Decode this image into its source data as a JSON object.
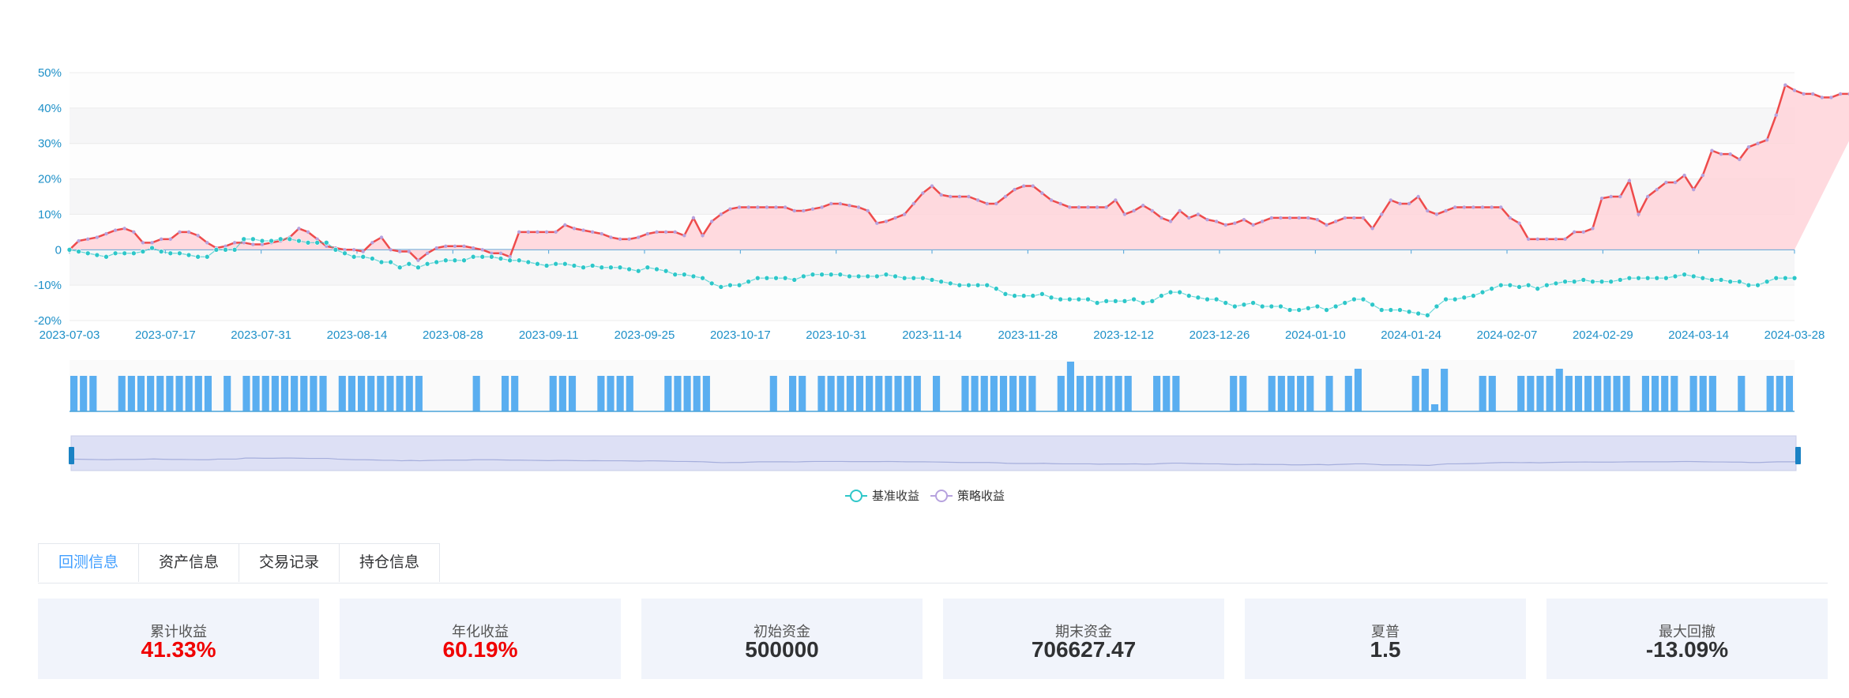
{
  "chart_data": {
    "type": "line",
    "y_ticks": [
      "50%",
      "40%",
      "30%",
      "20%",
      "10%",
      "0",
      "-10%",
      "-20%"
    ],
    "y_tick_values": [
      50,
      40,
      30,
      20,
      10,
      0,
      -10,
      -20
    ],
    "ylim": [
      -20,
      50
    ],
    "x_ticks": [
      "2023-07-03",
      "2023-07-17",
      "2023-07-31",
      "2023-08-14",
      "2023-08-28",
      "2023-09-11",
      "2023-09-25",
      "2023-10-17",
      "2023-10-31",
      "2023-11-14",
      "2023-11-28",
      "2023-12-12",
      "2023-12-26",
      "2024-01-10",
      "2024-01-24",
      "2024-02-07",
      "2024-02-29",
      "2024-03-14",
      "2024-03-28"
    ],
    "grid": true,
    "legend_position": "bottom-center",
    "series": [
      {
        "name": "基准收益",
        "color": "#2ec7c9",
        "values": [
          0.0,
          -0.5,
          -1.0,
          -1.5,
          -2.0,
          -1.0,
          -1.0,
          -1.0,
          -0.5,
          0.5,
          -0.5,
          -1.0,
          -1.0,
          -1.5,
          -2.0,
          -2.0,
          0.0,
          0.0,
          0.0,
          3.0,
          3.0,
          2.5,
          2.5,
          3.0,
          3.0,
          2.5,
          2.0,
          2.0,
          2.0,
          0.0,
          -1.0,
          -2.0,
          -2.0,
          -2.5,
          -3.5,
          -3.5,
          -5.0,
          -4.0,
          -5.0,
          -4.0,
          -3.5,
          -3.0,
          -3.0,
          -3.0,
          -2.0,
          -2.0,
          -2.0,
          -2.5,
          -3.0,
          -3.0,
          -3.5,
          -4.0,
          -4.5,
          -4.0,
          -4.0,
          -4.5,
          -5.0,
          -4.5,
          -5.0,
          -5.0,
          -5.0,
          -5.5,
          -6.0,
          -5.0,
          -5.5,
          -6.0,
          -7.0,
          -7.0,
          -7.5,
          -8.0,
          -9.5,
          -10.5,
          -10.0,
          -10.0,
          -9.0,
          -8.0,
          -8.0,
          -8.0,
          -8.0,
          -8.5,
          -7.5,
          -7.0,
          -7.0,
          -7.0,
          -7.0,
          -7.5,
          -7.5,
          -7.5,
          -7.5,
          -7.0,
          -7.5,
          -8.0,
          -8.0,
          -8.0,
          -8.5,
          -9.0,
          -9.5,
          -10.0,
          -10.0,
          -10.0,
          -10.0,
          -11.0,
          -12.5,
          -13.0,
          -13.0,
          -13.0,
          -12.5,
          -13.5,
          -14.0,
          -14.0,
          -14.0,
          -14.0,
          -15.0,
          -14.5,
          -14.5,
          -14.5,
          -14.0,
          -15.0,
          -14.5,
          -13.0,
          -12.0,
          -12.0,
          -13.0,
          -13.5,
          -14.0,
          -14.0,
          -15.0,
          -16.0,
          -15.5,
          -15.0,
          -16.0,
          -16.0,
          -16.0,
          -17.0,
          -17.0,
          -16.5,
          -16.0,
          -17.0,
          -16.0,
          -15.0,
          -14.0,
          -14.0,
          -15.5,
          -17.0,
          -17.0,
          -17.0,
          -17.5,
          -18.0,
          -18.5,
          -16.0,
          -14.0,
          -14.0,
          -13.5,
          -13.0,
          -12.0,
          -11.0,
          -10.0,
          -10.0,
          -10.5,
          -10.0,
          -11.0,
          -10.0,
          -9.5,
          -9.0,
          -9.0,
          -8.5,
          -9.0,
          -9.0,
          -9.0,
          -8.5,
          -8.0,
          -8.0,
          -8.0,
          -8.0,
          -8.0,
          -7.5,
          -7.0,
          -7.5,
          -8.0,
          -8.5,
          -8.5,
          -9.0,
          -9.0,
          -10.0,
          -10.0,
          -9.0,
          -8.0,
          -8.0,
          -8.0
        ]
      },
      {
        "name": "策略收益",
        "color": "#b6a2de",
        "line_color": "#ee4b4b",
        "area_color": "#ffd3d9",
        "values": [
          0.0,
          2.5,
          3.0,
          3.5,
          4.5,
          5.5,
          6.0,
          5.0,
          2.0,
          2.0,
          3.0,
          3.0,
          5.0,
          5.0,
          4.0,
          2.0,
          0.5,
          1.0,
          2.0,
          2.0,
          1.5,
          1.5,
          2.0,
          2.5,
          3.5,
          6.0,
          5.0,
          3.0,
          1.0,
          0.5,
          0.0,
          0.0,
          -0.5,
          2.0,
          3.5,
          0.0,
          -0.5,
          -0.5,
          -3.0,
          -1.0,
          0.5,
          1.0,
          1.0,
          1.0,
          0.5,
          0.0,
          -1.0,
          -1.0,
          -2.0,
          5.0,
          5.0,
          5.0,
          5.0,
          5.0,
          7.0,
          6.0,
          5.5,
          5.0,
          4.5,
          3.5,
          3.0,
          3.0,
          3.5,
          4.5,
          5.0,
          5.0,
          5.0,
          4.0,
          9.0,
          4.0,
          8.0,
          10.0,
          11.5,
          12.0,
          12.0,
          12.0,
          12.0,
          12.0,
          12.0,
          11.0,
          11.0,
          11.5,
          12.0,
          13.0,
          13.0,
          12.5,
          12.0,
          11.0,
          7.5,
          8.0,
          9.0,
          10.0,
          13.0,
          16.0,
          18.0,
          15.5,
          15.0,
          15.0,
          15.0,
          14.0,
          13.0,
          13.0,
          15.0,
          17.0,
          18.0,
          18.0,
          16.0,
          14.0,
          13.0,
          12.0,
          12.0,
          12.0,
          12.0,
          12.0,
          14.0,
          10.0,
          11.0,
          12.5,
          11.0,
          9.0,
          8.0,
          11.0,
          9.0,
          10.0,
          8.5,
          8.0,
          7.0,
          7.5,
          8.5,
          7.0,
          8.0,
          9.0,
          9.0,
          9.0,
          9.0,
          9.0,
          8.5,
          7.0,
          8.0,
          9.0,
          9.0,
          9.0,
          6.0,
          10.0,
          14.0,
          13.0,
          13.0,
          15.0,
          11.0,
          10.0,
          11.0,
          12.0,
          12.0,
          12.0,
          12.0,
          12.0,
          12.0,
          9.0,
          7.5,
          3.0,
          3.0,
          3.0,
          3.0,
          3.0,
          5.0,
          5.0,
          6.0,
          14.5,
          15.0,
          15.0,
          19.5,
          10.0,
          15.0,
          17.0,
          19.0,
          19.0,
          21.0,
          17.0,
          21.0,
          28.0,
          27.0,
          27.0,
          25.5,
          29.0,
          30.0,
          31.0,
          38.0,
          46.5,
          45.0,
          44.0,
          44.0,
          43.0,
          43.0,
          44.0,
          44.0,
          44.0,
          41.33
        ]
      }
    ],
    "volume_bars": [
      5,
      5,
      5,
      0,
      0,
      5,
      5,
      5,
      5,
      5,
      5,
      5,
      5,
      5,
      5,
      0,
      5,
      0,
      5,
      5,
      5,
      5,
      5,
      5,
      5,
      5,
      5,
      0,
      5,
      5,
      5,
      5,
      5,
      5,
      5,
      5,
      5,
      0,
      0,
      0,
      0,
      0,
      5,
      0,
      0,
      5,
      5,
      0,
      0,
      0,
      5,
      5,
      5,
      0,
      0,
      5,
      5,
      5,
      5,
      0,
      0,
      0,
      5,
      5,
      5,
      5,
      5,
      0,
      0,
      0,
      0,
      0,
      0,
      5,
      0,
      5,
      5,
      0,
      5,
      5,
      5,
      5,
      5,
      5,
      5,
      5,
      5,
      5,
      5,
      0,
      5,
      0,
      0,
      5,
      5,
      5,
      5,
      5,
      5,
      5,
      5,
      0,
      0,
      5,
      7,
      5,
      5,
      5,
      5,
      5,
      5,
      0,
      0,
      5,
      5,
      5,
      0,
      0,
      0,
      0,
      0,
      5,
      5,
      0,
      0,
      5,
      5,
      5,
      5,
      5,
      0,
      5,
      0,
      5,
      6,
      0,
      0,
      0,
      0,
      0,
      5,
      6,
      1,
      6,
      0,
      0,
      0,
      5,
      5,
      0,
      0,
      5,
      5,
      5,
      5,
      6,
      5,
      5,
      5,
      5,
      5,
      5,
      5,
      0,
      5,
      5,
      5,
      5,
      0,
      5,
      5,
      5,
      0,
      0,
      5,
      0,
      0,
      5,
      5,
      5
    ]
  },
  "tabs": [
    "回测信息",
    "资产信息",
    "交易记录",
    "持仓信息"
  ],
  "active_tab": 0,
  "metrics": [
    {
      "label": "累计收益",
      "value": "41.33%"
    },
    {
      "label": "年化收益",
      "value": "60.19%"
    },
    {
      "label": "初始资金",
      "value": "500000"
    },
    {
      "label": "期末资金",
      "value": "706627.47"
    },
    {
      "label": "夏普",
      "value": "1.5"
    },
    {
      "label": "最大回撤",
      "value": "-13.09%"
    }
  ],
  "colors": {
    "axis_text": "#1e90c8",
    "bar": "#5aaef0",
    "positive": "#f00000",
    "tab_active": "#409eff"
  }
}
